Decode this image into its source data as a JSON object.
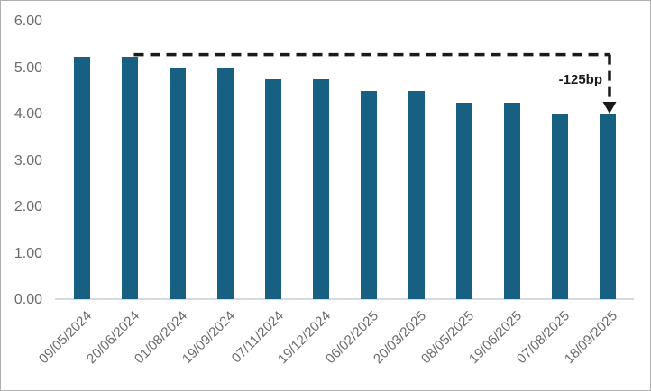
{
  "chart_data": {
    "type": "bar",
    "title": "",
    "xlabel": "",
    "ylabel": "",
    "categories": [
      "09/05/2024",
      "20/06/2024",
      "01/08/2024",
      "19/09/2024",
      "07/11/2024",
      "19/12/2024",
      "06/02/2025",
      "20/03/2025",
      "08/05/2025",
      "19/06/2025",
      "07/08/2025",
      "18/09/2025"
    ],
    "values": [
      5.25,
      5.25,
      5.0,
      5.0,
      4.75,
      4.75,
      4.5,
      4.5,
      4.25,
      4.25,
      4.0,
      4.0
    ],
    "y_ticks": [
      "6.00",
      "5.00",
      "4.00",
      "3.00",
      "2.00",
      "1.00",
      "0.00"
    ],
    "ylim": [
      0,
      6
    ],
    "grid": false,
    "legend": "none",
    "bar_color": "#176082",
    "axis_label_color": "#6b6b6b",
    "axis_line_color": "#d9d9d9",
    "annotation": {
      "label": "-125bp",
      "from_category": "20/06/2024",
      "to_category": "18/09/2025",
      "from_value": 5.25,
      "to_value": 4.0,
      "line_color": "#1a1a1a",
      "style": "dashed-arrow-down"
    }
  }
}
